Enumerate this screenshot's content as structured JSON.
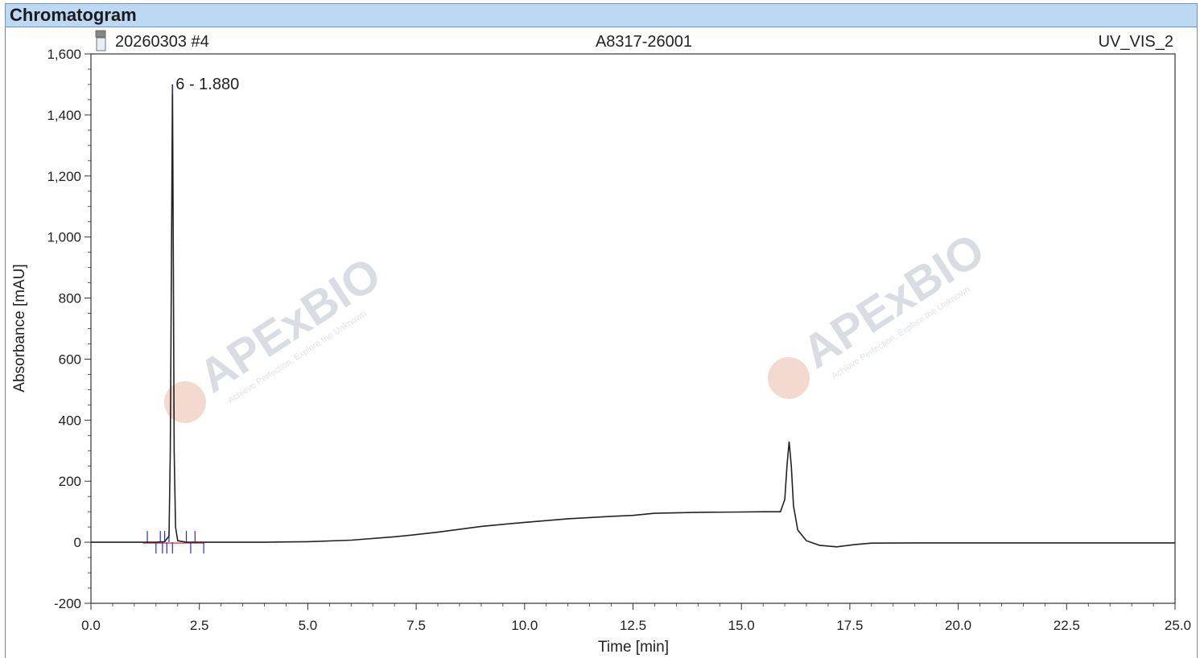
{
  "window": {
    "title": "Chromatogram"
  },
  "header": {
    "left": "20260303 #4",
    "center": "A8317-26001",
    "right": "UV_VIS_2"
  },
  "watermark": {
    "brand": "APExBIO",
    "slogan": "Achieve Perfection, Explore the Unknown"
  },
  "colors": {
    "trace": "#222222",
    "peak_marker": "#2a2ad6",
    "baseline": "#e04040",
    "title_bar": "#bcd8f3"
  },
  "chart_data": {
    "type": "line",
    "xlabel": "Time [min]",
    "ylabel": "Absorbance [mAU]",
    "xlim": [
      0.0,
      25.0
    ],
    "ylim": [
      -200,
      1600
    ],
    "xticks": [
      "0.0",
      "2.5",
      "5.0",
      "7.5",
      "10.0",
      "12.5",
      "15.0",
      "17.5",
      "20.0",
      "22.5",
      "25.0"
    ],
    "yticks": [
      "-200",
      "0",
      "200",
      "400",
      "600",
      "800",
      "1,000",
      "1,200",
      "1,400",
      "1,600"
    ],
    "series": [
      {
        "x": [
          0.0,
          1.2,
          1.5,
          1.7,
          1.8,
          1.83,
          1.86,
          1.88,
          1.9,
          1.92,
          1.95,
          2.0,
          2.2,
          3.0,
          4.0,
          4.5,
          5.0,
          6.0,
          7.0,
          7.5,
          8.0,
          9.0,
          10.0,
          11.0,
          12.0,
          12.5,
          13.0,
          14.0,
          15.0,
          15.5,
          15.9,
          16.0,
          16.05,
          16.1,
          16.15,
          16.2,
          16.3,
          16.5,
          16.8,
          17.2,
          17.6,
          18.0,
          19.0,
          20.0,
          22.5,
          25.0
        ],
        "y": [
          0,
          0,
          0,
          2,
          20,
          300,
          1000,
          1500,
          900,
          300,
          50,
          5,
          0,
          0,
          0,
          1,
          2,
          7,
          18,
          25,
          33,
          52,
          65,
          77,
          85,
          88,
          95,
          98,
          99,
          100,
          100,
          140,
          250,
          330,
          250,
          120,
          40,
          5,
          -10,
          -15,
          -8,
          -3,
          -2,
          -2,
          -2,
          -2
        ]
      }
    ],
    "peak_markers": [
      1.3,
      1.5,
      1.6,
      1.65,
      1.7,
      1.75,
      1.8,
      1.88,
      2.2,
      2.3,
      2.4,
      2.6
    ],
    "annotations": [
      {
        "x": 1.88,
        "y": 1500,
        "text": "6 - 1.880"
      }
    ],
    "grid": false,
    "legend": "none"
  }
}
